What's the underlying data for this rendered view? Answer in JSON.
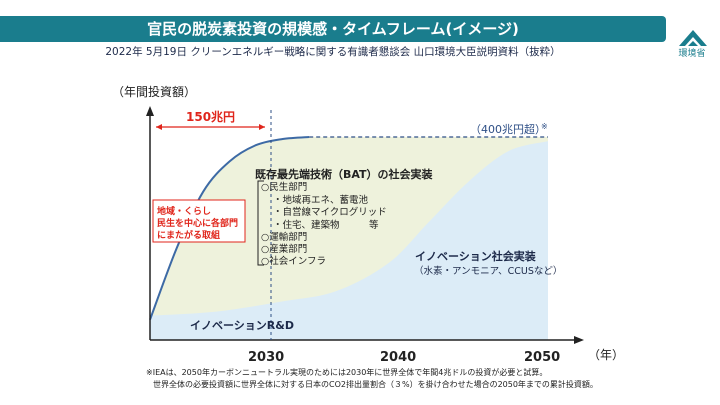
{
  "header": {
    "title": "官民の脱炭素投資の規模感・タイムフレーム(イメージ)",
    "subtitle": "2022年 5月19日 クリーンエネルギー戦略に関する有識者懇談会 山口環境大臣説明資料（抜粋）",
    "org": "環境省"
  },
  "chart_data": {
    "type": "area",
    "ylabel": "（年間投資額）",
    "xlabel": "（年）",
    "x_ticks": [
      "2030",
      "2040",
      "2050"
    ],
    "xlim": [
      2020,
      2050
    ],
    "series": [
      {
        "name": "既存最先端技術（BAT）の社会実装",
        "x": [
          2020,
          2022,
          2024,
          2026,
          2028,
          2030,
          2032,
          2035,
          2040,
          2045,
          2050
        ],
        "values": [
          10,
          45,
          73,
          88,
          96,
          99,
          100,
          100,
          100,
          100,
          100
        ]
      },
      {
        "name": "イノベーション社会実装",
        "x": [
          2020,
          2025,
          2030,
          2034,
          2038,
          2041,
          2044,
          2047,
          2050
        ],
        "values": [
          12,
          14,
          19,
          24,
          38,
          58,
          78,
          93,
          98
        ]
      }
    ],
    "annotations": {
      "period_150": "150兆円",
      "target_400": "（400兆円超）",
      "target_note": "※",
      "bat_title": "既存最先端技術（BAT）の社会実装",
      "bat_items": [
        "○民生部門",
        "・地域再エネ、蓄電池",
        "・自営線マイクログリッド",
        "・住宅、建築物",
        "等",
        "○運輸部門",
        "○産業部門",
        "○社会インフラ"
      ],
      "left_note": [
        "地域・くらし",
        "民生を中心に各部門",
        "にまたがる取組"
      ],
      "innov_title": "イノベーション社会実装",
      "innov_sub": "（水素・アンモニア、CCUSなど）",
      "rnd": "イノベーションR&D"
    }
  },
  "footnotes": [
    "※IEAは、2050年カーボンニュートラル実現のためには2030年に世界全体で年間4兆ドルの投資が必要と試算。",
    "世界全体の必要投資額に世界全体に対する日本のCO2排出量割合（３%）を掛け合わせた場合の2050年までの累計投資額。"
  ],
  "colors": {
    "header": "#1a7d8d",
    "bat_fill": "#eef2dc",
    "innov_fill": "#dcecf7",
    "curve": "#3d6aa5",
    "red": "#e0251b"
  }
}
